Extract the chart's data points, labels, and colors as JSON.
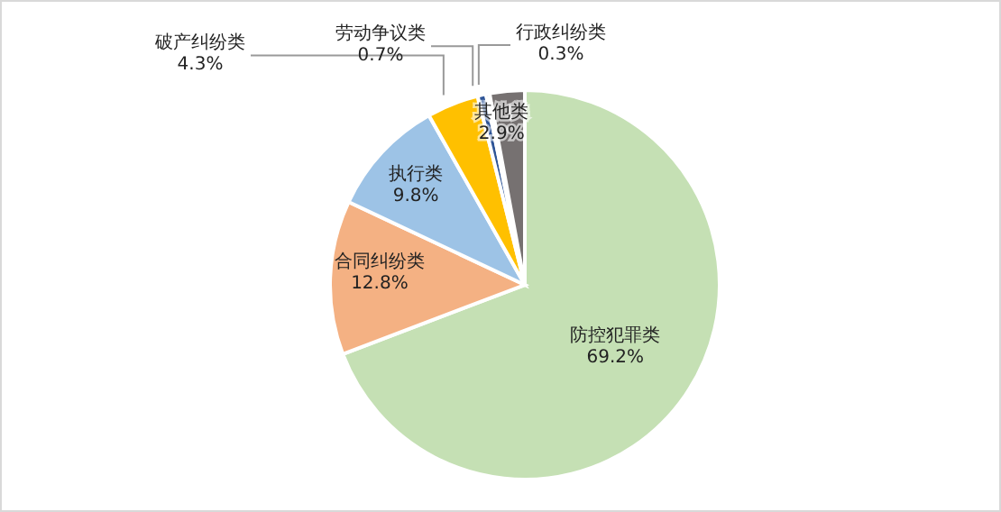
{
  "chart_data": {
    "type": "pie",
    "categories": [
      "防控犯罪类",
      "合同纠纷类",
      "执行类",
      "破产纠纷类",
      "劳动争议类",
      "行政纠纷类",
      "其他类"
    ],
    "values": [
      69.2,
      12.8,
      9.8,
      4.3,
      0.7,
      0.3,
      2.9
    ],
    "value_labels": [
      "69.2%",
      "12.8%",
      "9.8%",
      "4.3%",
      "0.7%",
      "0.3%",
      "2.9%"
    ],
    "colors": [
      "#c5e0b4",
      "#f4b183",
      "#9dc3e6",
      "#ffc000",
      "#2f5597",
      "#a5a5a5",
      "#767171"
    ],
    "legend": false
  }
}
